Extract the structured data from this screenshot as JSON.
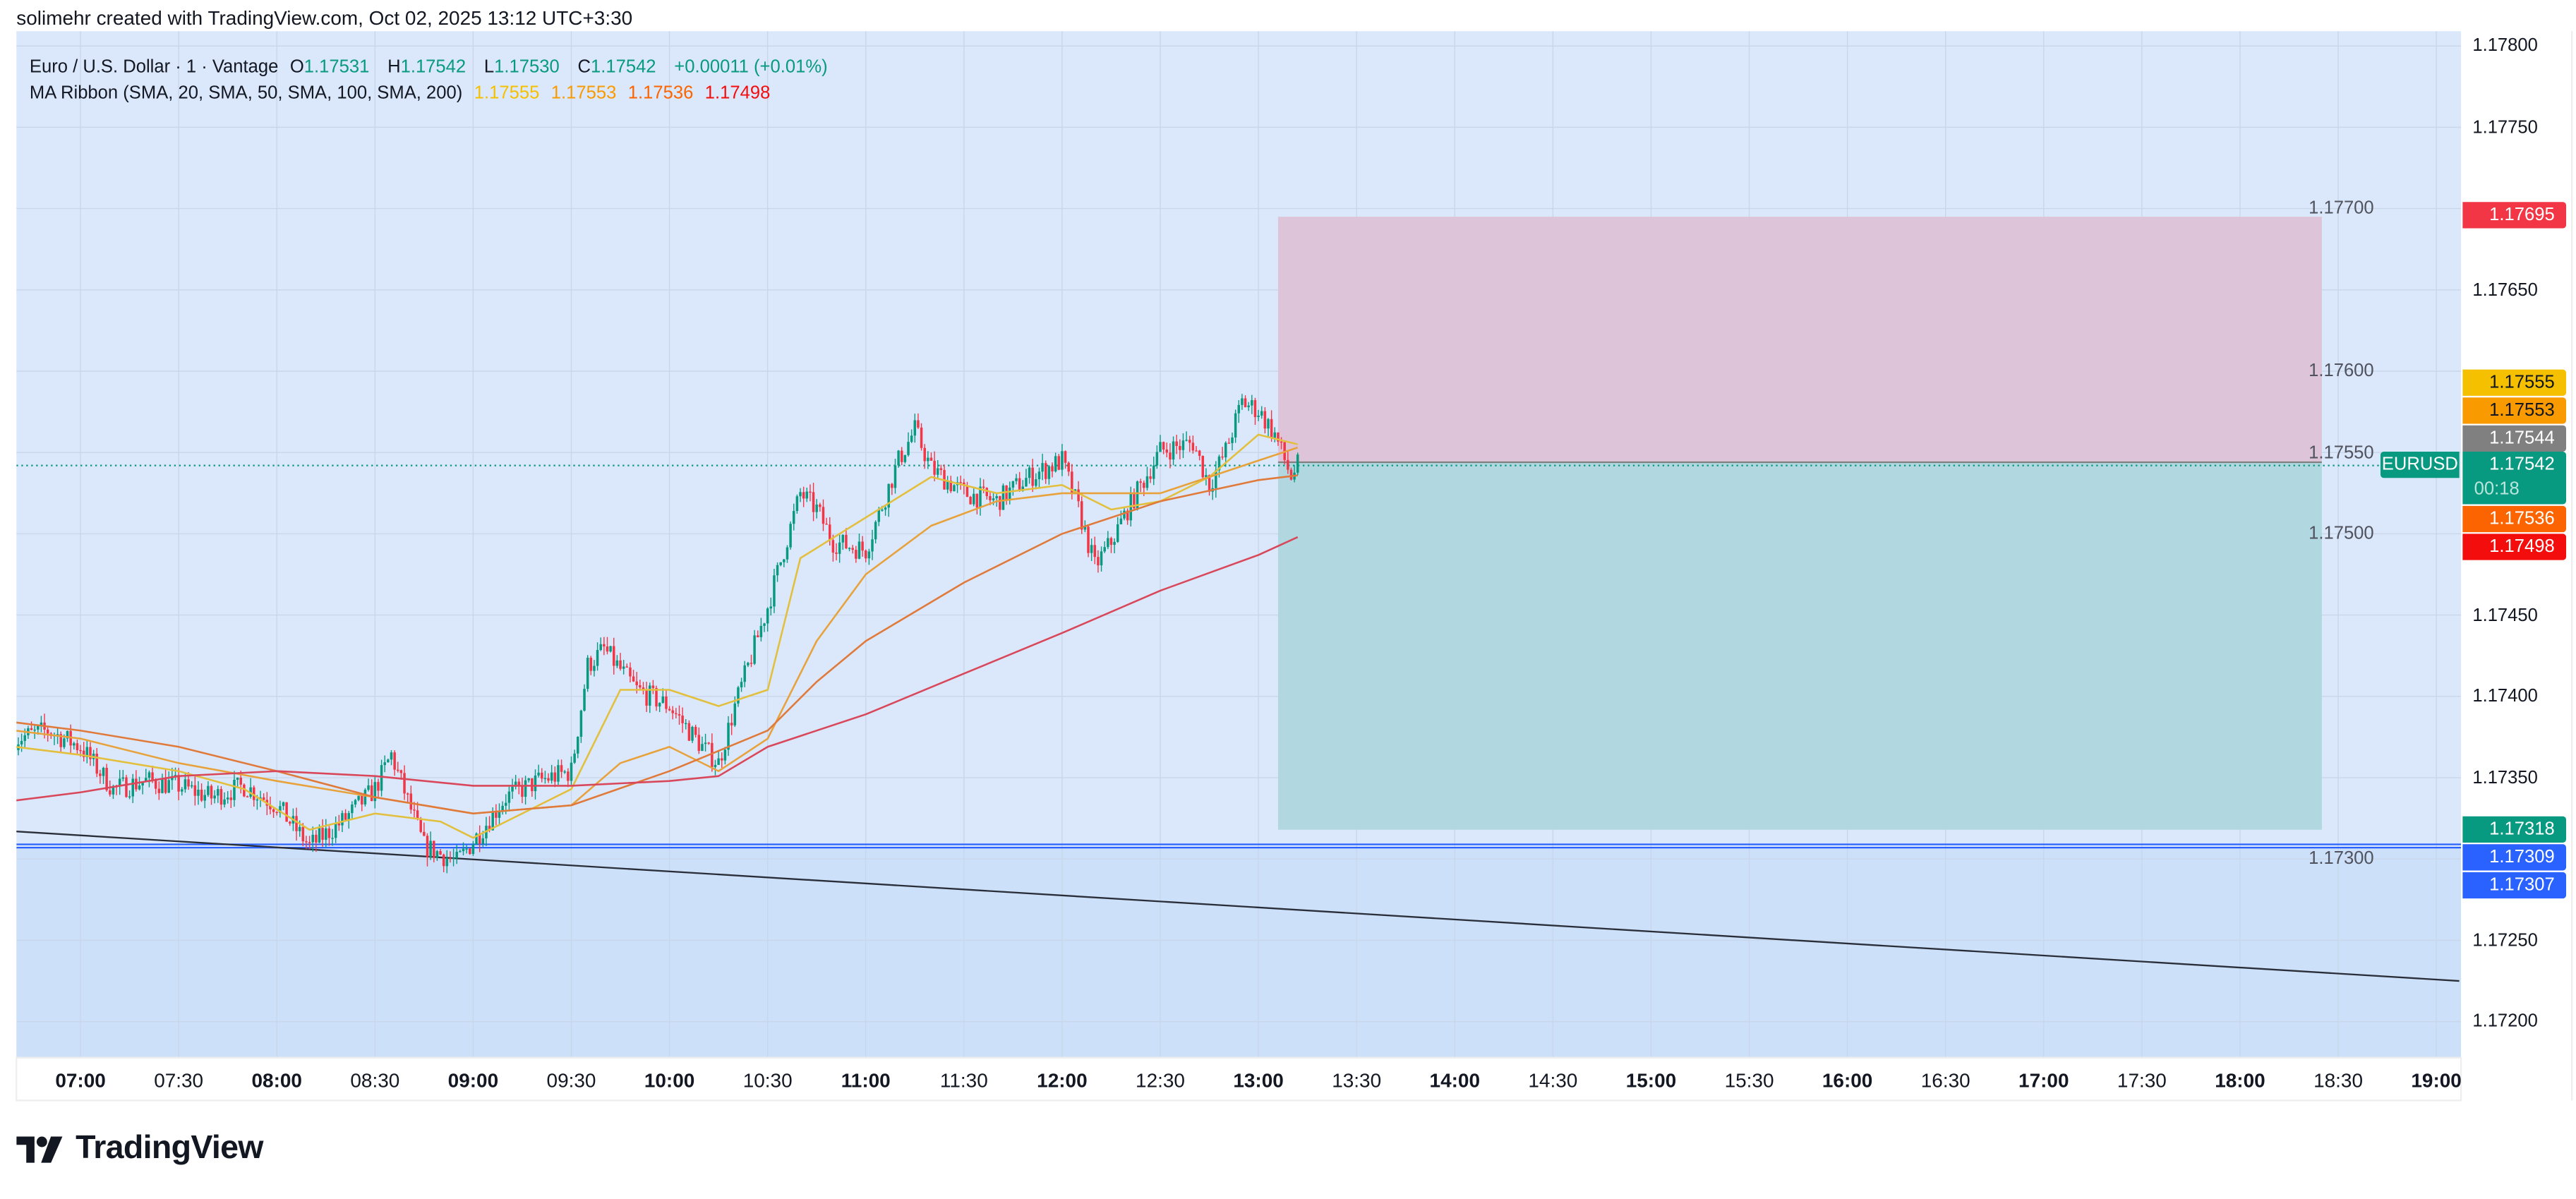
{
  "credit": "solimehr created with TradingView.com, Oct 02, 2025 13:12 UTC+3:30",
  "legend": {
    "symbol": "Euro / U.S. Dollar · 1 · Vantage",
    "o_label": "O",
    "o": "1.17531",
    "h_label": "H",
    "h": "1.17542",
    "l_label": "L",
    "l": "1.17530",
    "c_label": "C",
    "c": "1.17542",
    "change": "+0.00011 (+0.01%)",
    "indicator": "MA Ribbon (SMA, 20, SMA, 50, SMA, 100, SMA, 200)",
    "ma_values": [
      "1.17555",
      "1.17553",
      "1.17536",
      "1.17498"
    ]
  },
  "colors": {
    "up": "#089981",
    "down": "#f23645",
    "background": "#dbe8fb",
    "shaded": "#cde0fa",
    "ma20": "#e2bf3c",
    "ma50": "#e8a23c",
    "ma100": "#e07a3a",
    "ma200": "#d9485a",
    "stop_zone": "#dec4d8",
    "target_zone": "#b1d8e1",
    "hline": "#2962ff",
    "trendline": "#2a2e39"
  },
  "price_axis": {
    "ticks": [
      "1.17800",
      "1.17750",
      "1.17700",
      "1.17650",
      "1.17600",
      "1.17550",
      "1.17500",
      "1.17450",
      "1.17400",
      "1.17350",
      "1.17300",
      "1.17250",
      "1.17200"
    ],
    "labels": [
      {
        "value": "1.17695",
        "color": "#f23645"
      },
      {
        "value": "1.17555",
        "color": "#f5c000"
      },
      {
        "value": "1.17553",
        "color": "#f89a00"
      },
      {
        "value": "1.17544",
        "color": "#808080"
      },
      {
        "value": "1.17542",
        "color": "#089981",
        "countdown": "00:18"
      },
      {
        "value": "1.17536",
        "color": "#fb6400"
      },
      {
        "value": "1.17498",
        "color": "#f40d0d"
      },
      {
        "value": "1.17318",
        "color": "#089981"
      },
      {
        "value": "1.17309",
        "color": "#2962ff"
      },
      {
        "value": "1.17307",
        "color": "#2962ff"
      }
    ],
    "symbol_tag": "EURUSD"
  },
  "time_axis": {
    "ticks": [
      "07:00",
      "07:30",
      "08:00",
      "08:30",
      "09:00",
      "09:30",
      "10:00",
      "10:30",
      "11:00",
      "11:30",
      "12:00",
      "12:30",
      "13:00",
      "13:30",
      "14:00",
      "14:30",
      "15:00",
      "15:30",
      "16:00",
      "16:30",
      "17:00",
      "17:30",
      "18:00",
      "18:30",
      "19:00"
    ]
  },
  "chart_data": {
    "type": "candlestick",
    "interval": "1 minute",
    "yrange": [
      1.1717,
      1.1781
    ],
    "xrange": [
      "06:40",
      "19:07"
    ],
    "price_path": [
      [
        "06:40",
        1.17374
      ],
      [
        "06:50",
        1.17379
      ],
      [
        "07:00",
        1.17369
      ],
      [
        "07:10",
        1.17343
      ],
      [
        "07:20",
        1.17348
      ],
      [
        "07:30",
        1.17345
      ],
      [
        "07:40",
        1.17338
      ],
      [
        "07:50",
        1.17345
      ],
      [
        "08:00",
        1.17333
      ],
      [
        "08:10",
        1.17308
      ],
      [
        "08:20",
        1.17323
      ],
      [
        "08:30",
        1.17343
      ],
      [
        "08:35",
        1.17364
      ],
      [
        "08:45",
        1.17308
      ],
      [
        "08:55",
        1.17298
      ],
      [
        "09:00",
        1.17311
      ],
      [
        "09:10",
        1.17338
      ],
      [
        "09:20",
        1.17348
      ],
      [
        "09:30",
        1.17354
      ],
      [
        "09:35",
        1.17419
      ],
      [
        "09:40",
        1.17429
      ],
      [
        "09:50",
        1.17404
      ],
      [
        "10:00",
        1.17394
      ],
      [
        "10:10",
        1.17369
      ],
      [
        "10:15",
        1.17359
      ],
      [
        "10:20",
        1.17394
      ],
      [
        "10:30",
        1.17455
      ],
      [
        "10:40",
        1.17525
      ],
      [
        "10:45",
        1.17515
      ],
      [
        "10:50",
        1.17495
      ],
      [
        "11:00",
        1.1749
      ],
      [
        "11:10",
        1.17545
      ],
      [
        "11:15",
        1.17564
      ],
      [
        "11:20",
        1.1754
      ],
      [
        "11:30",
        1.17525
      ],
      [
        "11:40",
        1.1752
      ],
      [
        "11:50",
        1.17535
      ],
      [
        "12:00",
        1.17545
      ],
      [
        "12:05",
        1.17515
      ],
      [
        "12:10",
        1.1748
      ],
      [
        "12:15",
        1.17495
      ],
      [
        "12:20",
        1.17515
      ],
      [
        "12:30",
        1.17551
      ],
      [
        "12:40",
        1.17556
      ],
      [
        "12:45",
        1.1753
      ],
      [
        "12:50",
        1.17551
      ],
      [
        "12:55",
        1.17581
      ],
      [
        "13:00",
        1.17576
      ],
      [
        "13:05",
        1.17561
      ],
      [
        "13:10",
        1.17535
      ],
      [
        "13:12",
        1.17542
      ]
    ],
    "moving_averages": [
      {
        "name": "SMA 20",
        "color_key": "ma20",
        "points": [
          [
            "06:40",
            1.17369
          ],
          [
            "07:00",
            1.17364
          ],
          [
            "07:30",
            1.17354
          ],
          [
            "07:50",
            1.17343
          ],
          [
            "08:10",
            1.17318
          ],
          [
            "08:30",
            1.17328
          ],
          [
            "08:50",
            1.17323
          ],
          [
            "09:00",
            1.17313
          ],
          [
            "09:15",
            1.17328
          ],
          [
            "09:30",
            1.17343
          ],
          [
            "09:45",
            1.17404
          ],
          [
            "10:00",
            1.17404
          ],
          [
            "10:15",
            1.17394
          ],
          [
            "10:30",
            1.17404
          ],
          [
            "10:40",
            1.17485
          ],
          [
            "11:00",
            1.1751
          ],
          [
            "11:20",
            1.17535
          ],
          [
            "11:40",
            1.17525
          ],
          [
            "12:00",
            1.1753
          ],
          [
            "12:15",
            1.17515
          ],
          [
            "12:30",
            1.1752
          ],
          [
            "12:45",
            1.17535
          ],
          [
            "13:00",
            1.17561
          ],
          [
            "13:12",
            1.17555
          ]
        ]
      },
      {
        "name": "SMA 50",
        "color_key": "ma50",
        "points": [
          [
            "06:40",
            1.17379
          ],
          [
            "07:00",
            1.17374
          ],
          [
            "07:30",
            1.17359
          ],
          [
            "08:00",
            1.17348
          ],
          [
            "08:30",
            1.17338
          ],
          [
            "09:00",
            1.17328
          ],
          [
            "09:30",
            1.17333
          ],
          [
            "09:45",
            1.17359
          ],
          [
            "10:00",
            1.17369
          ],
          [
            "10:15",
            1.17354
          ],
          [
            "10:30",
            1.17374
          ],
          [
            "10:45",
            1.17434
          ],
          [
            "11:00",
            1.17475
          ],
          [
            "11:20",
            1.17505
          ],
          [
            "11:40",
            1.1752
          ],
          [
            "12:00",
            1.17525
          ],
          [
            "12:30",
            1.17525
          ],
          [
            "12:45",
            1.17535
          ],
          [
            "13:00",
            1.17545
          ],
          [
            "13:12",
            1.17553
          ]
        ]
      },
      {
        "name": "SMA 100",
        "color_key": "ma100",
        "points": [
          [
            "06:40",
            1.17384
          ],
          [
            "07:00",
            1.17379
          ],
          [
            "07:30",
            1.17369
          ],
          [
            "08:00",
            1.17354
          ],
          [
            "08:30",
            1.17338
          ],
          [
            "09:00",
            1.17328
          ],
          [
            "09:30",
            1.17333
          ],
          [
            "10:00",
            1.17354
          ],
          [
            "10:30",
            1.17379
          ],
          [
            "10:45",
            1.17409
          ],
          [
            "11:00",
            1.17434
          ],
          [
            "11:30",
            1.1747
          ],
          [
            "12:00",
            1.175
          ],
          [
            "12:30",
            1.1752
          ],
          [
            "13:00",
            1.17533
          ],
          [
            "13:12",
            1.17536
          ]
        ]
      },
      {
        "name": "SMA 200",
        "color_key": "ma200",
        "points": [
          [
            "06:40",
            1.17336
          ],
          [
            "07:00",
            1.17341
          ],
          [
            "07:30",
            1.17351
          ],
          [
            "08:00",
            1.17354
          ],
          [
            "08:30",
            1.17351
          ],
          [
            "09:00",
            1.17345
          ],
          [
            "09:30",
            1.17345
          ],
          [
            "10:00",
            1.17348
          ],
          [
            "10:15",
            1.17351
          ],
          [
            "10:30",
            1.17369
          ],
          [
            "11:00",
            1.17389
          ],
          [
            "11:30",
            1.17414
          ],
          [
            "12:00",
            1.17439
          ],
          [
            "12:30",
            1.17465
          ],
          [
            "13:00",
            1.17487
          ],
          [
            "13:12",
            1.17498
          ]
        ]
      }
    ],
    "position_tool": {
      "start": "13:06",
      "end": "18:25",
      "entry": 1.17544,
      "stop": 1.17695,
      "target": 1.17318
    },
    "horizontal_lines": [
      1.17309,
      1.17307
    ],
    "trendline": {
      "from": [
        "06:40",
        1.17317
      ],
      "to": [
        "19:07",
        1.17225
      ]
    },
    "last_price": 1.17542
  },
  "logo": {
    "text": "TradingView"
  }
}
